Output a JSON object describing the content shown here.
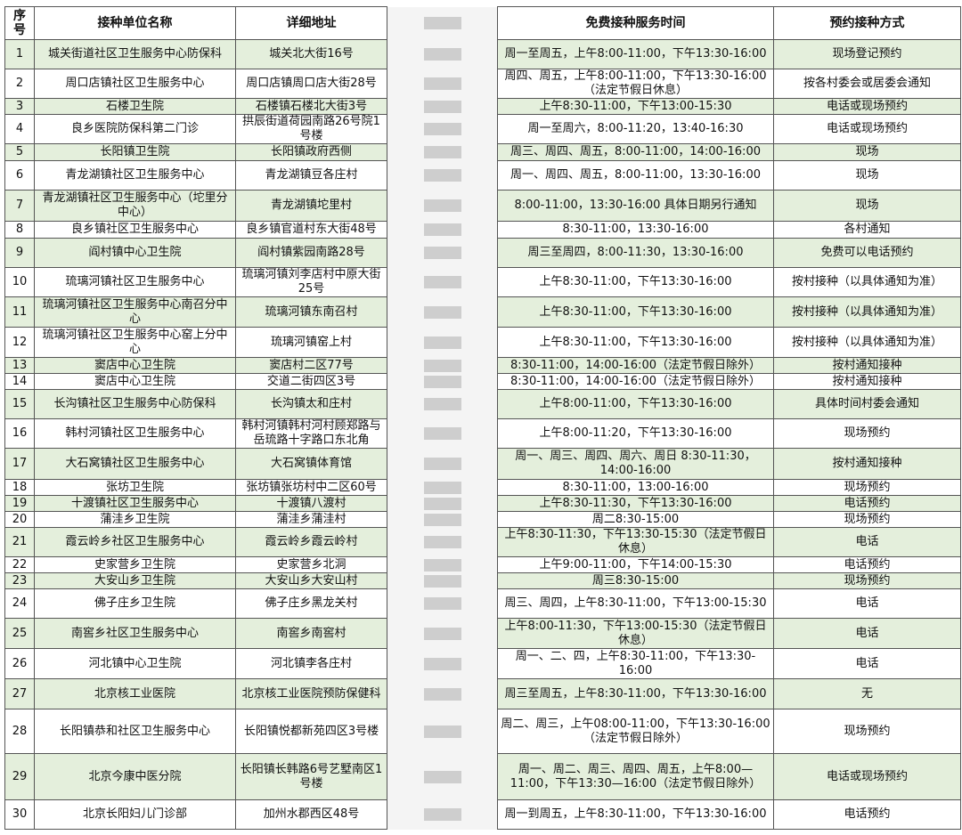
{
  "headers": [
    "序号",
    "接种单位名称",
    "详细地址",
    "",
    "免费接种服务时间",
    "预约接种方式"
  ],
  "rows": [
    [
      "1",
      "城关街道社区卫生服务中心防保科",
      "城关北大街16号",
      "周一至周五，上午8:00-11:00，下午13:30-16:00",
      "现场登记预约"
    ],
    [
      "2",
      "周口店镇社区卫生服务中心",
      "周口店镇周口店大街28号",
      "周四、周五，上午8:00-11:00，下午13:30-16:00（法定节假日休息）",
      "按各村委会或居委会通知"
    ],
    [
      "3",
      "石楼卫生院",
      "石楼镇石楼北大街3号",
      "上午8:30-11:00，下午13:00-15:30",
      "电话或现场预约"
    ],
    [
      "4",
      "良乡医院防保科第二门诊",
      "拱辰街道荷园南路26号院1号楼",
      "周一至周六，8:00-11:20，13:40-16:30",
      "电话或现场预约"
    ],
    [
      "5",
      "长阳镇卫生院",
      "长阳镇政府西侧",
      "周三、周四、周五，8:00-11:00，14:00-16:00",
      "现场"
    ],
    [
      "6",
      "青龙湖镇社区卫生服务中心",
      "青龙湖镇豆各庄村",
      "周一、周四、周五，8:00-11:00，13:30-16:00",
      "现场"
    ],
    [
      "7",
      "青龙湖镇社区卫生服务中心（坨里分中心）",
      "青龙湖镇坨里村",
      "8:00-11:00，13:30-16:00 具体日期另行通知",
      "现场"
    ],
    [
      "8",
      "良乡镇社区卫生服务中心",
      "良乡镇官道村东大街48号",
      "8:30-11:00，13:30-16:00",
      "各村通知"
    ],
    [
      "9",
      "阎村镇中心卫生院",
      "阎村镇紫园南路28号",
      "周三至周四，8:00-11:30，13:30-16:00",
      "免费可以电话预约"
    ],
    [
      "10",
      "琉璃河镇社区卫生服务中心",
      "琉璃河镇刘李店村中原大街25号",
      "上午8:30-11:00，下午13:30-16:00",
      "按村接种（以具体通知为准）"
    ],
    [
      "11",
      "琉璃河镇社区卫生服务中心南召分中心",
      "琉璃河镇东南召村",
      "上午8:30-11:00，下午13:30-16:00",
      "按村接种（以具体通知为准）"
    ],
    [
      "12",
      "琉璃河镇社区卫生服务中心窑上分中心",
      "琉璃河镇窑上村",
      "上午8:30-11:00，下午13:30-16:00",
      "按村接种（以具体通知为准）"
    ],
    [
      "13",
      "窦店中心卫生院",
      "窦店村二区77号",
      "8:30-11:00，14:00-16:00（法定节假日除外）",
      "按村通知接种"
    ],
    [
      "14",
      "窦店中心卫生院",
      "交道二街四区3号",
      "8:30-11:00，14:00-16:00（法定节假日除外）",
      "按村通知接种"
    ],
    [
      "15",
      "长沟镇社区卫生服务中心防保科",
      "长沟镇太和庄村",
      "上午8:00-11:00，下午13:30-16:00",
      "具体时间村委会通知"
    ],
    [
      "16",
      "韩村河镇社区卫生服务中心",
      "韩村河镇韩村河村顾郑路与岳琉路十字路口东北角",
      "上午8:00-11:20，下午13:30-16:00",
      "现场预约"
    ],
    [
      "17",
      "大石窝镇社区卫生服务中心",
      "大石窝镇体育馆",
      "周一、周三、周四、周六、周日 8:30-11:30，14:00-16:00",
      "按村通知接种"
    ],
    [
      "18",
      "张坊卫生院",
      "张坊镇张坊村中二区60号",
      "8:30-11:00，13:00-16:00",
      "现场预约"
    ],
    [
      "19",
      "十渡镇社区卫生服务中心",
      "十渡镇八渡村",
      "上午8:30-11:30，下午13:30-16:00",
      "电话预约"
    ],
    [
      "20",
      "蒲洼乡卫生院",
      "蒲洼乡蒲洼村",
      "周二8:30-15:00",
      "现场预约"
    ],
    [
      "21",
      "霞云岭乡社区卫生服务中心",
      "霞云岭乡霞云岭村",
      "上午8:30-11:30，下午13:30-15:30（法定节假日休息）",
      "电话"
    ],
    [
      "22",
      "史家营乡卫生院",
      "史家营乡北洞",
      "上午9:00-11:00，下午14:00-15:30",
      "电话预约"
    ],
    [
      "23",
      "大安山乡卫生院",
      "大安山乡大安山村",
      "周三8:30-15:00",
      "现场预约"
    ],
    [
      "24",
      "佛子庄乡卫生院",
      "佛子庄乡黑龙关村",
      "周三、周四，上午8:30-11:00，下午13:00-15:30",
      "电话"
    ],
    [
      "25",
      "南窖乡社区卫生服务中心",
      "南窖乡南窖村",
      "上午8:00-11:30，下午13:00-15:30（法定节假日休息）",
      "电话"
    ],
    [
      "26",
      "河北镇中心卫生院",
      "河北镇李各庄村",
      "周一、二、四，上午8:30-11:00，下午13:30-16:00",
      "电话"
    ],
    [
      "27",
      "北京核工业医院",
      "北京核工业医院预防保健科",
      "周三至周五，上午8:30-11:00，下午13:30-16:00",
      "无"
    ],
    [
      "28",
      "长阳镇恭和社区卫生服务中心",
      "长阳镇悦都新苑四区3号楼",
      "周二、周三，上午08:00-11:00，下午13:30-16:00（法定节假日除外）",
      "现场预约"
    ],
    [
      "29",
      "北京今康中医分院",
      "长阳镇长韩路6号艺墅南区1号楼",
      "周一、周二、周三、周四、周五，上午8:00—11:00，下午13:30—16:00（法定节假日除外）",
      "电话或现场预约"
    ],
    [
      "30",
      "北京长阳妇儿门诊部",
      "加州水郡西区48号",
      "周一到周五，上午8:30-11:00，下午13:30-16:00",
      "电话预约"
    ]
  ]
}
